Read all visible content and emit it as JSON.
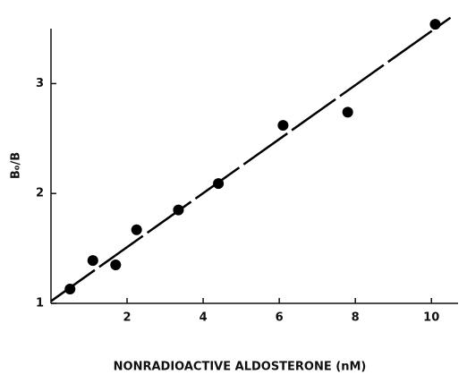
{
  "chart_data": {
    "type": "scatter",
    "x_label": "NONRADIOACTIVE ALDOSTERONE (nM)",
    "y_label": "B₀/B",
    "x": [
      0.5,
      1.1,
      1.7,
      2.25,
      3.35,
      4.4,
      6.1,
      7.8,
      10.1
    ],
    "values": [
      1.13,
      1.39,
      1.35,
      1.67,
      1.85,
      2.09,
      2.62,
      2.74,
      3.54
    ],
    "color": "#000000",
    "fit_line": {
      "x": [
        0,
        10.5
      ],
      "values": [
        1.02,
        3.6
      ]
    },
    "xlim": [
      0,
      10.7
    ],
    "ylim": [
      1,
      3.5
    ],
    "xticks": [
      2,
      4,
      6,
      8,
      10
    ],
    "yticks": [
      1,
      2,
      3
    ],
    "grid": false
  }
}
